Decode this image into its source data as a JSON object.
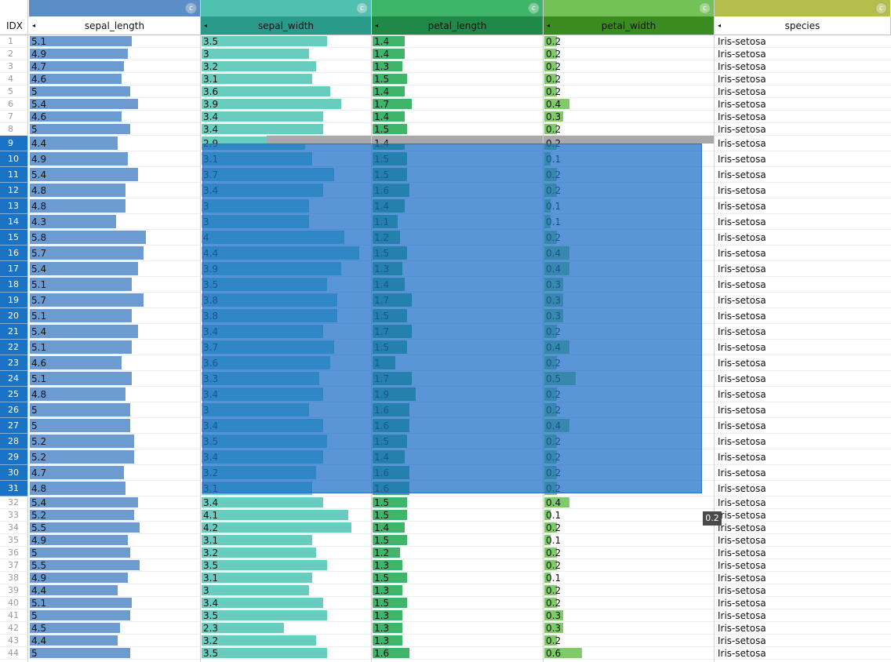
{
  "table": {
    "index_header": "IDX",
    "columns": [
      {
        "key": "sepal_length",
        "label": "sepal_length",
        "type_badge": "c",
        "color": "#5b8ec6",
        "head_bg": "#ffffff",
        "head_fg": "#111111",
        "bar_color": "#6b9bd0",
        "max": 7.9
      },
      {
        "key": "sepal_width",
        "label": "sepal_width",
        "type_badge": "c",
        "color": "#4fc1b0",
        "head_bg": "#2a9a8a",
        "head_fg": "#111111",
        "bar_color": "#67cdbe",
        "max": 4.4
      },
      {
        "key": "petal_length",
        "label": "petal_length",
        "type_badge": "c",
        "color": "#3fb56a",
        "head_bg": "#1f8a48",
        "head_fg": "#111111",
        "bar_color": "#3fb56a",
        "max": 6.9
      },
      {
        "key": "petal_width",
        "label": "petal_width",
        "type_badge": "c",
        "color": "#72c257",
        "head_bg": "#3a8c1e",
        "head_fg": "#111111",
        "bar_color": "#7fcb6a",
        "max": 2.5
      },
      {
        "key": "species",
        "label": "species",
        "type_badge": "c",
        "color": "#b4be4a",
        "head_bg": "#ffffff",
        "head_fg": "#111111",
        "bar_color": "",
        "max": 0
      }
    ],
    "selected_rows": [
      9,
      31
    ],
    "tooltip": "0.2",
    "rows": [
      {
        "idx": "1",
        "sepal_length": "5.1",
        "sepal_width": "3.5",
        "petal_length": "1.4",
        "petal_width": "0.2",
        "species": "Iris-setosa"
      },
      {
        "idx": "2",
        "sepal_length": "4.9",
        "sepal_width": "3",
        "petal_length": "1.4",
        "petal_width": "0.2",
        "species": "Iris-setosa"
      },
      {
        "idx": "3",
        "sepal_length": "4.7",
        "sepal_width": "3.2",
        "petal_length": "1.3",
        "petal_width": "0.2",
        "species": "Iris-setosa"
      },
      {
        "idx": "4",
        "sepal_length": "4.6",
        "sepal_width": "3.1",
        "petal_length": "1.5",
        "petal_width": "0.2",
        "species": "Iris-setosa"
      },
      {
        "idx": "5",
        "sepal_length": "5",
        "sepal_width": "3.6",
        "petal_length": "1.4",
        "petal_width": "0.2",
        "species": "Iris-setosa"
      },
      {
        "idx": "6",
        "sepal_length": "5.4",
        "sepal_width": "3.9",
        "petal_length": "1.7",
        "petal_width": "0.4",
        "species": "Iris-setosa"
      },
      {
        "idx": "7",
        "sepal_length": "4.6",
        "sepal_width": "3.4",
        "petal_length": "1.4",
        "petal_width": "0.3",
        "species": "Iris-setosa"
      },
      {
        "idx": "8",
        "sepal_length": "5",
        "sepal_width": "3.4",
        "petal_length": "1.5",
        "petal_width": "0.2",
        "species": "Iris-setosa"
      },
      {
        "idx": "9",
        "sepal_length": "4.4",
        "sepal_width": "2.9",
        "petal_length": "1.4",
        "petal_width": "0.2",
        "species": "Iris-setosa"
      },
      {
        "idx": "10",
        "sepal_length": "4.9",
        "sepal_width": "3.1",
        "petal_length": "1.5",
        "petal_width": "0.1",
        "species": "Iris-setosa"
      },
      {
        "idx": "11",
        "sepal_length": "5.4",
        "sepal_width": "3.7",
        "petal_length": "1.5",
        "petal_width": "0.2",
        "species": "Iris-setosa"
      },
      {
        "idx": "12",
        "sepal_length": "4.8",
        "sepal_width": "3.4",
        "petal_length": "1.6",
        "petal_width": "0.2",
        "species": "Iris-setosa"
      },
      {
        "idx": "13",
        "sepal_length": "4.8",
        "sepal_width": "3",
        "petal_length": "1.4",
        "petal_width": "0.1",
        "species": "Iris-setosa"
      },
      {
        "idx": "14",
        "sepal_length": "4.3",
        "sepal_width": "3",
        "petal_length": "1.1",
        "petal_width": "0.1",
        "species": "Iris-setosa"
      },
      {
        "idx": "15",
        "sepal_length": "5.8",
        "sepal_width": "4",
        "petal_length": "1.2",
        "petal_width": "0.2",
        "species": "Iris-setosa"
      },
      {
        "idx": "16",
        "sepal_length": "5.7",
        "sepal_width": "4.4",
        "petal_length": "1.5",
        "petal_width": "0.4",
        "species": "Iris-setosa"
      },
      {
        "idx": "17",
        "sepal_length": "5.4",
        "sepal_width": "3.9",
        "petal_length": "1.3",
        "petal_width": "0.4",
        "species": "Iris-setosa"
      },
      {
        "idx": "18",
        "sepal_length": "5.1",
        "sepal_width": "3.5",
        "petal_length": "1.4",
        "petal_width": "0.3",
        "species": "Iris-setosa"
      },
      {
        "idx": "19",
        "sepal_length": "5.7",
        "sepal_width": "3.8",
        "petal_length": "1.7",
        "petal_width": "0.3",
        "species": "Iris-setosa"
      },
      {
        "idx": "20",
        "sepal_length": "5.1",
        "sepal_width": "3.8",
        "petal_length": "1.5",
        "petal_width": "0.3",
        "species": "Iris-setosa"
      },
      {
        "idx": "21",
        "sepal_length": "5.4",
        "sepal_width": "3.4",
        "petal_length": "1.7",
        "petal_width": "0.2",
        "species": "Iris-setosa"
      },
      {
        "idx": "22",
        "sepal_length": "5.1",
        "sepal_width": "3.7",
        "petal_length": "1.5",
        "petal_width": "0.4",
        "species": "Iris-setosa"
      },
      {
        "idx": "23",
        "sepal_length": "4.6",
        "sepal_width": "3.6",
        "petal_length": "1",
        "petal_width": "0.2",
        "species": "Iris-setosa"
      },
      {
        "idx": "24",
        "sepal_length": "5.1",
        "sepal_width": "3.3",
        "petal_length": "1.7",
        "petal_width": "0.5",
        "species": "Iris-setosa"
      },
      {
        "idx": "25",
        "sepal_length": "4.8",
        "sepal_width": "3.4",
        "petal_length": "1.9",
        "petal_width": "0.2",
        "species": "Iris-setosa"
      },
      {
        "idx": "26",
        "sepal_length": "5",
        "sepal_width": "3",
        "petal_length": "1.6",
        "petal_width": "0.2",
        "species": "Iris-setosa"
      },
      {
        "idx": "27",
        "sepal_length": "5",
        "sepal_width": "3.4",
        "petal_length": "1.6",
        "petal_width": "0.4",
        "species": "Iris-setosa"
      },
      {
        "idx": "28",
        "sepal_length": "5.2",
        "sepal_width": "3.5",
        "petal_length": "1.5",
        "petal_width": "0.2",
        "species": "Iris-setosa"
      },
      {
        "idx": "29",
        "sepal_length": "5.2",
        "sepal_width": "3.4",
        "petal_length": "1.4",
        "petal_width": "0.2",
        "species": "Iris-setosa"
      },
      {
        "idx": "30",
        "sepal_length": "4.7",
        "sepal_width": "3.2",
        "petal_length": "1.6",
        "petal_width": "0.2",
        "species": "Iris-setosa"
      },
      {
        "idx": "31",
        "sepal_length": "4.8",
        "sepal_width": "3.1",
        "petal_length": "1.6",
        "petal_width": "0.2",
        "species": "Iris-setosa"
      },
      {
        "idx": "32",
        "sepal_length": "5.4",
        "sepal_width": "3.4",
        "petal_length": "1.5",
        "petal_width": "0.4",
        "species": "Iris-setosa"
      },
      {
        "idx": "33",
        "sepal_length": "5.2",
        "sepal_width": "4.1",
        "petal_length": "1.5",
        "petal_width": "0.1",
        "species": "Iris-setosa"
      },
      {
        "idx": "34",
        "sepal_length": "5.5",
        "sepal_width": "4.2",
        "petal_length": "1.4",
        "petal_width": "0.2",
        "species": "Iris-setosa"
      },
      {
        "idx": "35",
        "sepal_length": "4.9",
        "sepal_width": "3.1",
        "petal_length": "1.5",
        "petal_width": "0.1",
        "species": "Iris-setosa"
      },
      {
        "idx": "36",
        "sepal_length": "5",
        "sepal_width": "3.2",
        "petal_length": "1.2",
        "petal_width": "0.2",
        "species": "Iris-setosa"
      },
      {
        "idx": "37",
        "sepal_length": "5.5",
        "sepal_width": "3.5",
        "petal_length": "1.3",
        "petal_width": "0.2",
        "species": "Iris-setosa"
      },
      {
        "idx": "38",
        "sepal_length": "4.9",
        "sepal_width": "3.1",
        "petal_length": "1.5",
        "petal_width": "0.1",
        "species": "Iris-setosa"
      },
      {
        "idx": "39",
        "sepal_length": "4.4",
        "sepal_width": "3",
        "petal_length": "1.3",
        "petal_width": "0.2",
        "species": "Iris-setosa"
      },
      {
        "idx": "40",
        "sepal_length": "5.1",
        "sepal_width": "3.4",
        "petal_length": "1.5",
        "petal_width": "0.2",
        "species": "Iris-setosa"
      },
      {
        "idx": "41",
        "sepal_length": "5",
        "sepal_width": "3.5",
        "petal_length": "1.3",
        "petal_width": "0.3",
        "species": "Iris-setosa"
      },
      {
        "idx": "42",
        "sepal_length": "4.5",
        "sepal_width": "2.3",
        "petal_length": "1.3",
        "petal_width": "0.3",
        "species": "Iris-setosa"
      },
      {
        "idx": "43",
        "sepal_length": "4.4",
        "sepal_width": "3.2",
        "petal_length": "1.3",
        "petal_width": "0.2",
        "species": "Iris-setosa"
      },
      {
        "idx": "44",
        "sepal_length": "5",
        "sepal_width": "3.5",
        "petal_length": "1.6",
        "petal_width": "0.6",
        "species": "Iris-setosa"
      }
    ]
  }
}
